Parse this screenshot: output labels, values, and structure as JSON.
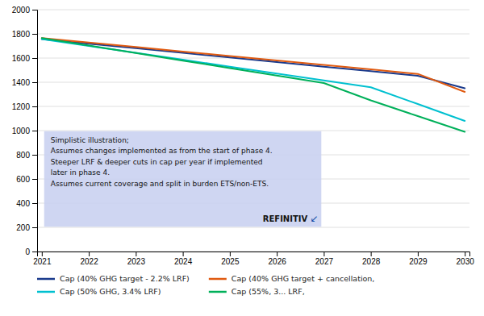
{
  "chart_data": {
    "type": "line",
    "x": [
      2021,
      2022,
      2023,
      2024,
      2025,
      2026,
      2027,
      2028,
      2029,
      2030
    ],
    "series": [
      {
        "name": "Cap (40% GHG target - 2.2% LRF)",
        "color": "#1a3a8c",
        "values": [
          1757,
          1719,
          1681,
          1643,
          1605,
          1567,
          1529,
          1491,
          1453,
          1350
        ]
      },
      {
        "name": "Cap (40% GHG target + cancellation,",
        "color": "#e05a10",
        "values": [
          1765,
          1728,
          1691,
          1654,
          1617,
          1580,
          1543,
          1506,
          1469,
          1320
        ]
      },
      {
        "name": "Cap (50% GHG, 3.4% LRF)",
        "color": "#00c0d0",
        "values": [
          1757,
          1700,
          1643,
          1586,
          1529,
          1472,
          1415,
          1358,
          1220,
          1080
        ]
      },
      {
        "name": "Cap (55%, 3... LRF,",
        "color": "#00b05a",
        "values": [
          1765,
          1703,
          1641,
          1579,
          1517,
          1455,
          1393,
          1250,
          1120,
          990
        ]
      }
    ],
    "xlim": [
      2020.9,
      2030.1
    ],
    "xticks": [
      2021,
      2022,
      2023,
      2024,
      2025,
      2026,
      2027,
      2028,
      2029,
      2030
    ],
    "ylim": [
      0,
      2000
    ],
    "yticks": [
      0,
      200,
      400,
      600,
      800,
      1000,
      1200,
      1400,
      1600,
      1800,
      2000
    ],
    "grid": true,
    "legend": "bottom",
    "annotations": [
      "Simplistic illustration;\nAssumes changes implemented as from the start of phase 4.\nSteeper LRF & deeper cuts in cap per year if implemented\nlater in phase 4.\nAssumes current coverage and split in burden ETS/non-ETS.",
      "REFINITIV",
      "↙"
    ]
  }
}
